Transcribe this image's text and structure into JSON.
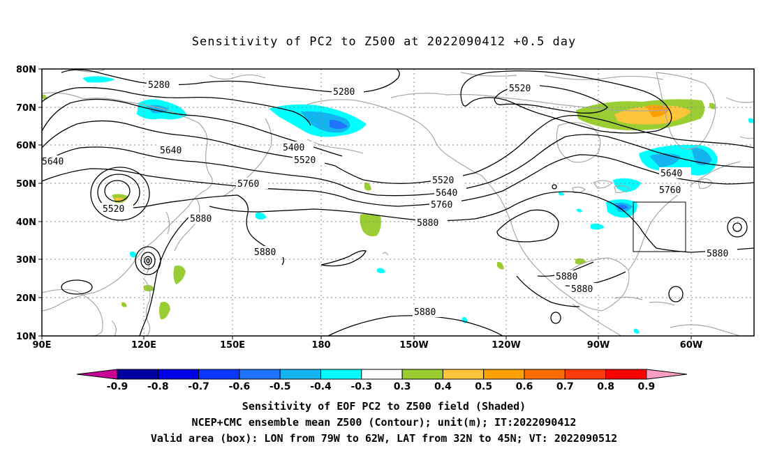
{
  "title": "Sensitivity of PC2 to Z500 at 2022090412 +0.5 day",
  "map": {
    "lon_labels": [
      "90E",
      "120E",
      "150E",
      "180",
      "150W",
      "120W",
      "90W",
      "60W"
    ],
    "lat_labels": [
      "80N",
      "70N",
      "60N",
      "50N",
      "40N",
      "30N",
      "20N",
      "10N"
    ],
    "contour_labels": [
      {
        "text": "5280",
        "id": "c5280a"
      },
      {
        "text": "5280",
        "id": "c5280b"
      },
      {
        "text": "5520",
        "id": "c5520a"
      },
      {
        "text": "5400",
        "id": "c5400"
      },
      {
        "text": "5520",
        "id": "c5520b"
      },
      {
        "text": "5640",
        "id": "c5640a"
      },
      {
        "text": "5640",
        "id": "c5640b"
      },
      {
        "text": "5520",
        "id": "c5520c"
      },
      {
        "text": "5760",
        "id": "c5760a"
      },
      {
        "text": "5520",
        "id": "c5520d"
      },
      {
        "text": "5640",
        "id": "c5640c"
      },
      {
        "text": "5760",
        "id": "c5760b"
      },
      {
        "text": "5880",
        "id": "c5880a"
      },
      {
        "text": "5880",
        "id": "c5880b"
      },
      {
        "text": "5880",
        "id": "c5880c"
      },
      {
        "text": "5640",
        "id": "c5640d"
      },
      {
        "text": "5760",
        "id": "c5760c"
      },
      {
        "text": "5880",
        "id": "c5880d"
      },
      {
        "text": "5880",
        "id": "c5880e"
      },
      {
        "text": "5880",
        "id": "c5880f"
      },
      {
        "text": "5880",
        "id": "c5880g"
      }
    ]
  },
  "colorbar": {
    "labels": [
      "-0.9",
      "-0.8",
      "-0.7",
      "-0.6",
      "-0.5",
      "-0.4",
      "-0.3",
      "0.3",
      "0.4",
      "0.5",
      "0.6",
      "0.7",
      "0.8",
      "0.9"
    ],
    "colors": [
      "#0000a0",
      "#0000e8",
      "#0838ff",
      "#1e74ff",
      "#14b4f0",
      "#00ffff",
      "#ffffff",
      "#9acd32",
      "#ffc53a",
      "#ff9f00",
      "#ff6d00",
      "#ff3a0c",
      "#ff0000"
    ],
    "low_end_color": "#c80096",
    "high_end_color": "#ff9ec4"
  },
  "caption": {
    "line1": "Sensitivity of EOF PC2 to Z500 field (Shaded)",
    "line2": "NCEP+CMC ensemble mean Z500 (Contour); unit(m); IT:2022090412",
    "line3": "Valid area (box): LON from 79W to 62W, LAT from 32N to 45N; VT: 2022090512"
  }
}
